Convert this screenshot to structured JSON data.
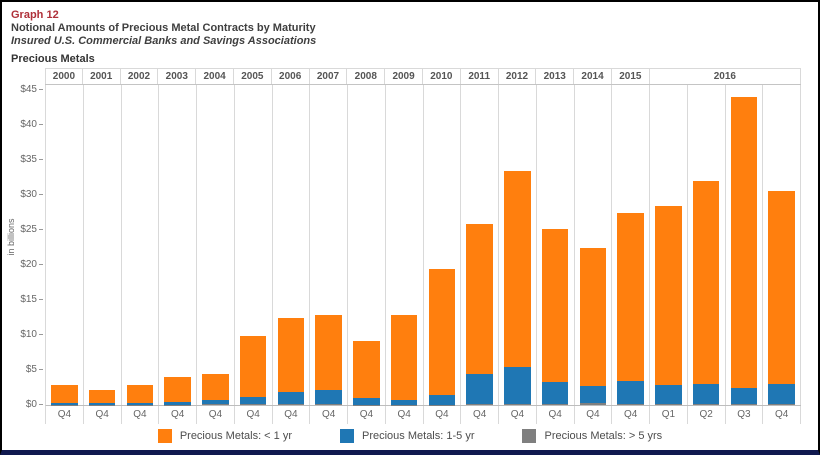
{
  "header": {
    "graph_number": "Graph 12",
    "title": "Notional Amounts of Precious Metal Contracts by Maturity",
    "subtitle": "Insured U.S. Commercial Banks and Savings Associations"
  },
  "section_label": "Precious Metals",
  "colors": {
    "orange": "#FF7F0E",
    "blue": "#1F77B4",
    "gray": "#7F7F7F",
    "graph_number_red": "#AF3039",
    "axis_text": "#666666",
    "grid_line": "#D9D9D9"
  },
  "yaxis": {
    "label": "in billions",
    "unit_prefix": "$",
    "min": 0,
    "max": 45,
    "step": 5,
    "ticks": [
      "$45",
      "$40",
      "$35",
      "$30",
      "$25",
      "$20",
      "$15",
      "$10",
      "$5",
      "$0"
    ]
  },
  "legend": {
    "items": [
      {
        "label": "Precious Metals: < 1 yr",
        "color_key": "orange"
      },
      {
        "label": "Precious Metals: 1-5 yr",
        "color_key": "blue"
      },
      {
        "label": "Precious Metals: > 5 yrs",
        "color_key": "gray"
      }
    ]
  },
  "chart_data": {
    "type": "bar",
    "stacked": true,
    "title": "Precious Metals",
    "xlabel": "",
    "ylabel": "in billions",
    "ylim": [
      0,
      45
    ],
    "grid": false,
    "legend_position": "bottom",
    "year_groups": [
      {
        "label": "2000",
        "span": 1
      },
      {
        "label": "2001",
        "span": 1
      },
      {
        "label": "2002",
        "span": 1
      },
      {
        "label": "2003",
        "span": 1
      },
      {
        "label": "2004",
        "span": 1
      },
      {
        "label": "2005",
        "span": 1
      },
      {
        "label": "2006",
        "span": 1
      },
      {
        "label": "2007",
        "span": 1
      },
      {
        "label": "2008",
        "span": 1
      },
      {
        "label": "2009",
        "span": 1
      },
      {
        "label": "2010",
        "span": 1
      },
      {
        "label": "2011",
        "span": 1
      },
      {
        "label": "2012",
        "span": 1
      },
      {
        "label": "2013",
        "span": 1
      },
      {
        "label": "2014",
        "span": 1
      },
      {
        "label": "2015",
        "span": 1
      },
      {
        "label": "2016",
        "span": 4
      }
    ],
    "categories": [
      "2000 Q4",
      "2001 Q4",
      "2002 Q4",
      "2003 Q4",
      "2004 Q4",
      "2005 Q4",
      "2006 Q4",
      "2007 Q4",
      "2008 Q4",
      "2009 Q4",
      "2010 Q4",
      "2011 Q4",
      "2012 Q4",
      "2013 Q4",
      "2014 Q4",
      "2015 Q4",
      "2016 Q1",
      "2016 Q2",
      "2016 Q3",
      "2016 Q4"
    ],
    "quarter_labels": [
      "Q4",
      "Q4",
      "Q4",
      "Q4",
      "Q4",
      "Q4",
      "Q4",
      "Q4",
      "Q4",
      "Q4",
      "Q4",
      "Q4",
      "Q4",
      "Q4",
      "Q4",
      "Q4",
      "Q1",
      "Q2",
      "Q3",
      "Q4"
    ],
    "series": [
      {
        "name": "Precious Metals: < 1 yr",
        "color_key": "orange",
        "stack_position": "top",
        "values": [
          2.45,
          1.95,
          2.55,
          3.55,
          3.85,
          8.8,
          10.6,
          10.8,
          8.05,
          12.25,
          17.95,
          21.4,
          27.9,
          21.8,
          19.8,
          24.1,
          25.6,
          29.0,
          41.6,
          27.6
        ]
      },
      {
        "name": "Precious Metals: 1-5 yr",
        "color_key": "blue",
        "stack_position": "middle",
        "values": [
          0.3,
          0.2,
          0.3,
          0.4,
          0.5,
          1.0,
          1.7,
          2.0,
          1.0,
          0.6,
          1.4,
          4.3,
          5.4,
          3.2,
          2.4,
          3.3,
          2.7,
          2.9,
          2.3,
          2.9
        ]
      },
      {
        "name": "Precious Metals: > 5 yrs",
        "color_key": "gray",
        "stack_position": "bottom",
        "values": [
          0.05,
          0.05,
          0.05,
          0.05,
          0.15,
          0.1,
          0.1,
          0.1,
          0.05,
          0.05,
          0.05,
          0.1,
          0.1,
          0.1,
          0.3,
          0.1,
          0.1,
          0.1,
          0.1,
          0.1
        ]
      }
    ],
    "totals": [
      2.8,
      2.2,
      2.9,
      4.0,
      4.5,
      9.9,
      12.4,
      12.9,
      9.1,
      12.9,
      19.4,
      25.8,
      33.4,
      25.1,
      22.5,
      27.5,
      28.4,
      32.0,
      44.0,
      30.6
    ]
  }
}
